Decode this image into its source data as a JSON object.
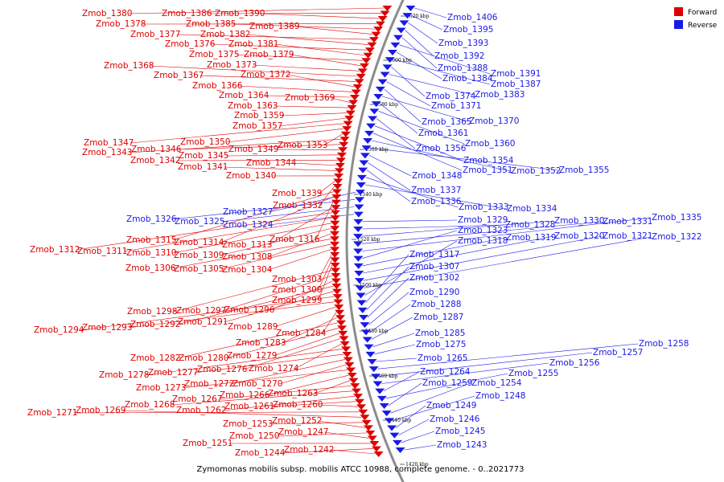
{
  "colors": {
    "forward": "#dd0000",
    "reverse": "#1a1ae6",
    "backbone": "#8c8c8c"
  },
  "legend": {
    "forward_label": "Forward",
    "reverse_label": "Reverse"
  },
  "caption": "Zymomonas mobilis subsp. mobilis ATCC 10988, complete genome. - 0..2021773",
  "ticks": [
    "1620 kbp",
    "1600 kbp",
    "1580 kbp",
    "1560 kbp",
    "1540 kbp",
    "1520 kbp",
    "1500 kbp",
    "1480 kbp",
    "1460 kbp",
    "1440 kbp",
    "1420 kbp"
  ],
  "forward_genes": [
    "Zmob_1380",
    "Zmob_1386",
    "Zmob_1390",
    "Zmob_1378",
    "Zmob_1385",
    "Zmob_1389",
    "Zmob_1377",
    "Zmob_1382",
    "Zmob_1376",
    "Zmob_1381",
    "Zmob_1375",
    "Zmob_1379",
    "Zmob_1373",
    "Zmob_1368",
    "Zmob_1367",
    "Zmob_1372",
    "Zmob_1366",
    "Zmob_1364",
    "Zmob_1369",
    "Zmob_1363",
    "Zmob_1359",
    "Zmob_1357",
    "Zmob_1347",
    "Zmob_1350",
    "Zmob_1353",
    "Zmob_1343",
    "Zmob_1346",
    "Zmob_1349",
    "Zmob_1345",
    "Zmob_1342",
    "Zmob_1344",
    "Zmob_1341",
    "Zmob_1340",
    "Zmob_1339",
    "Zmob_1332",
    "Zmob_1315",
    "Zmob_1314",
    "Zmob_1316",
    "Zmob_1313",
    "Zmob_1312",
    "Zmob_1311",
    "Zmob_1310",
    "Zmob_1309",
    "Zmob_1308",
    "Zmob_1306",
    "Zmob_1305",
    "Zmob_1304",
    "Zmob_1303",
    "Zmob_1300",
    "Zmob_1299",
    "Zmob_1298",
    "Zmob_1297",
    "Zmob_1296",
    "Zmob_1292",
    "Zmob_1291",
    "Zmob_1294",
    "Zmob_1293",
    "Zmob_1289",
    "Zmob_1284",
    "Zmob_1283",
    "Zmob_1282",
    "Zmob_1280",
    "Zmob_1279",
    "Zmob_1276",
    "Zmob_1274",
    "Zmob_1278",
    "Zmob_1277",
    "Zmob_1272",
    "Zmob_1270",
    "Zmob_1273",
    "Zmob_1266",
    "Zmob_1263",
    "Zmob_1267",
    "Zmob_1268",
    "Zmob_1262",
    "Zmob_1261",
    "Zmob_1260",
    "Zmob_1271",
    "Zmob_1269",
    "Zmob_1253",
    "Zmob_1252",
    "Zmob_1250",
    "Zmob_1247",
    "Zmob_1251",
    "Zmob_1244",
    "Zmob_1242"
  ],
  "reverse_genes": [
    "Zmob_1406",
    "Zmob_1395",
    "Zmob_1393",
    "Zmob_1392",
    "Zmob_1388",
    "Zmob_1391",
    "Zmob_1384",
    "Zmob_1387",
    "Zmob_1374",
    "Zmob_1383",
    "Zmob_1371",
    "Zmob_1365",
    "Zmob_1370",
    "Zmob_1361",
    "Zmob_1360",
    "Zmob_1356",
    "Zmob_1354",
    "Zmob_1351",
    "Zmob_1352",
    "Zmob_1355",
    "Zmob_1348",
    "Zmob_1337",
    "Zmob_1336",
    "Zmob_1333",
    "Zmob_1334",
    "Zmob_1327",
    "Zmob_1326",
    "Zmob_1325",
    "Zmob_1324",
    "Zmob_1329",
    "Zmob_1328",
    "Zmob_1330",
    "Zmob_1331",
    "Zmob_1335",
    "Zmob_1323",
    "Zmob_1319",
    "Zmob_1320",
    "Zmob_1321",
    "Zmob_1322",
    "Zmob_1318",
    "Zmob_1317",
    "Zmob_1307",
    "Zmob_1302",
    "Zmob_1290",
    "Zmob_1288",
    "Zmob_1287",
    "Zmob_1285",
    "Zmob_1275",
    "Zmob_1265",
    "Zmob_1258",
    "Zmob_1257",
    "Zmob_1256",
    "Zmob_1264",
    "Zmob_1255",
    "Zmob_1259",
    "Zmob_1254",
    "Zmob_1248",
    "Zmob_1249",
    "Zmob_1246",
    "Zmob_1245",
    "Zmob_1243"
  ]
}
